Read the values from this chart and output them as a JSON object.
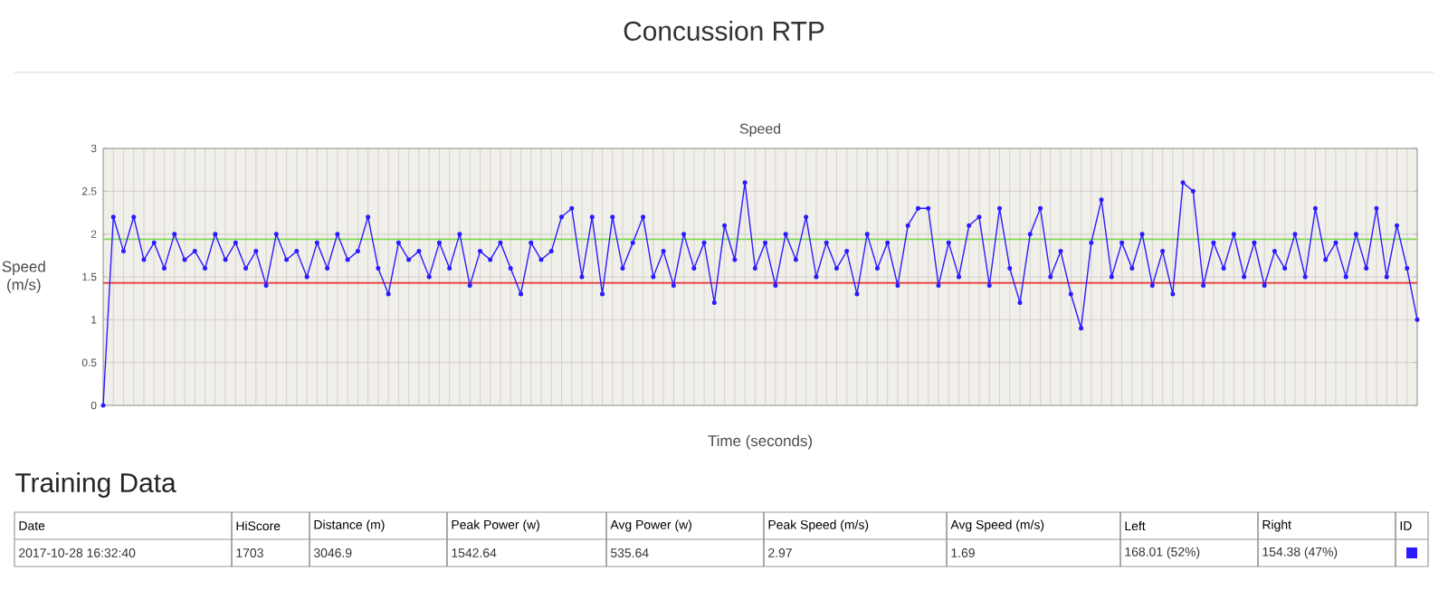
{
  "chart_data": [
    {
      "type": "line",
      "title": "Concussion RTP",
      "subtitle": "Speed",
      "xlabel": "Time (seconds)",
      "ylabel": "Speed (m/s)",
      "categories": [
        null,
        null,
        null,
        null,
        null,
        null,
        null,
        null,
        null,
        null,
        null,
        null,
        null,
        null,
        null,
        null,
        null,
        null,
        null,
        null,
        null,
        null,
        null,
        null,
        null,
        null,
        null,
        null,
        null,
        null,
        null,
        null,
        null,
        null,
        null,
        null,
        null,
        null,
        null,
        null,
        null,
        null,
        null,
        null,
        null,
        null,
        null,
        null,
        null,
        null,
        null,
        null,
        null,
        null,
        null,
        null,
        null,
        null,
        null,
        null,
        null,
        null,
        null,
        null,
        null,
        null,
        null,
        null,
        null,
        null,
        null,
        null,
        null,
        null,
        null,
        null,
        null,
        null,
        null,
        null,
        null,
        null,
        null,
        null,
        null,
        null,
        null,
        null,
        null,
        null,
        null,
        null,
        null,
        null,
        null,
        null,
        null,
        null,
        null,
        null,
        null,
        null,
        null,
        null,
        null,
        null,
        null,
        null,
        null,
        null,
        null,
        null,
        null,
        null,
        null,
        null,
        null,
        null,
        null,
        null,
        null,
        null,
        null,
        null,
        null,
        null,
        null,
        null,
        null,
        null
      ],
      "series": [
        {
          "color": "#2a1cff",
          "values": [
            0,
            2.2,
            1.8,
            2.2,
            1.7,
            1.9,
            1.6,
            2.0,
            1.7,
            1.8,
            1.6,
            2.0,
            1.7,
            1.9,
            1.6,
            1.8,
            1.4,
            2.0,
            1.7,
            1.8,
            1.5,
            1.9,
            1.6,
            2.0,
            1.7,
            1.8,
            2.2,
            1.6,
            1.3,
            1.9,
            1.7,
            1.8,
            1.5,
            1.9,
            1.6,
            2.0,
            1.4,
            1.8,
            1.7,
            1.9,
            1.6,
            1.3,
            1.9,
            1.7,
            1.8,
            2.2,
            2.3,
            1.5,
            2.2,
            1.3,
            2.2,
            1.6,
            1.9,
            2.2,
            1.5,
            1.8,
            1.4,
            2.0,
            1.6,
            1.9,
            1.2,
            2.1,
            1.7,
            2.6,
            1.6,
            1.9,
            1.4,
            2.0,
            1.7,
            2.2,
            1.5,
            1.9,
            1.6,
            1.8,
            1.3,
            2.0,
            1.6,
            1.9,
            1.4,
            2.1,
            2.3,
            2.3,
            1.4,
            1.9,
            1.5,
            2.1,
            2.2,
            1.4,
            2.3,
            1.6,
            1.2,
            2.0,
            2.3,
            1.5,
            1.8,
            1.3,
            0.9,
            1.9,
            2.4,
            1.5,
            1.9,
            1.6,
            2.0,
            1.4,
            1.8,
            1.3,
            2.6,
            2.5,
            1.4,
            1.9,
            1.6,
            2.0,
            1.5,
            1.9,
            1.4,
            1.8,
            1.6,
            2.0,
            1.5,
            2.3,
            1.7,
            1.9,
            1.5,
            2.0,
            1.6,
            2.3,
            1.5,
            2.1,
            1.6,
            1.0
          ]
        }
      ],
      "ylim": [
        0,
        3
      ],
      "yticks": [
        0,
        0.5,
        1,
        1.5,
        2,
        2.5,
        3
      ],
      "tick_labels": "y",
      "grid": true,
      "marker": "circle",
      "line_style": "solid",
      "ref_lines": [
        {
          "axis": "y",
          "value": 1.94,
          "color": "#7ed957"
        },
        {
          "axis": "y",
          "value": 1.43,
          "color": "#e8312f"
        }
      ]
    },
    {
      "type": "other",
      "title": "Training Data",
      "categories": [
        "Date",
        "HiScore",
        "Distance (m)",
        "Peak Power (w)",
        "Avg Power (w)",
        "Peak Speed (m/s)",
        "Avg Speed (m/s)",
        "Left",
        "Right",
        "ID"
      ],
      "value_labels": [
        "2017-10-28 16:32:40",
        "1703",
        "3046.9",
        "1542.64",
        "535.64",
        "2.97",
        "1.69",
        "168.01 (52%)",
        "154.38 (47%)",
        null
      ],
      "colors": [
        null,
        null,
        null,
        null,
        null,
        null,
        null,
        null,
        null,
        "#2a1cff"
      ]
    }
  ]
}
